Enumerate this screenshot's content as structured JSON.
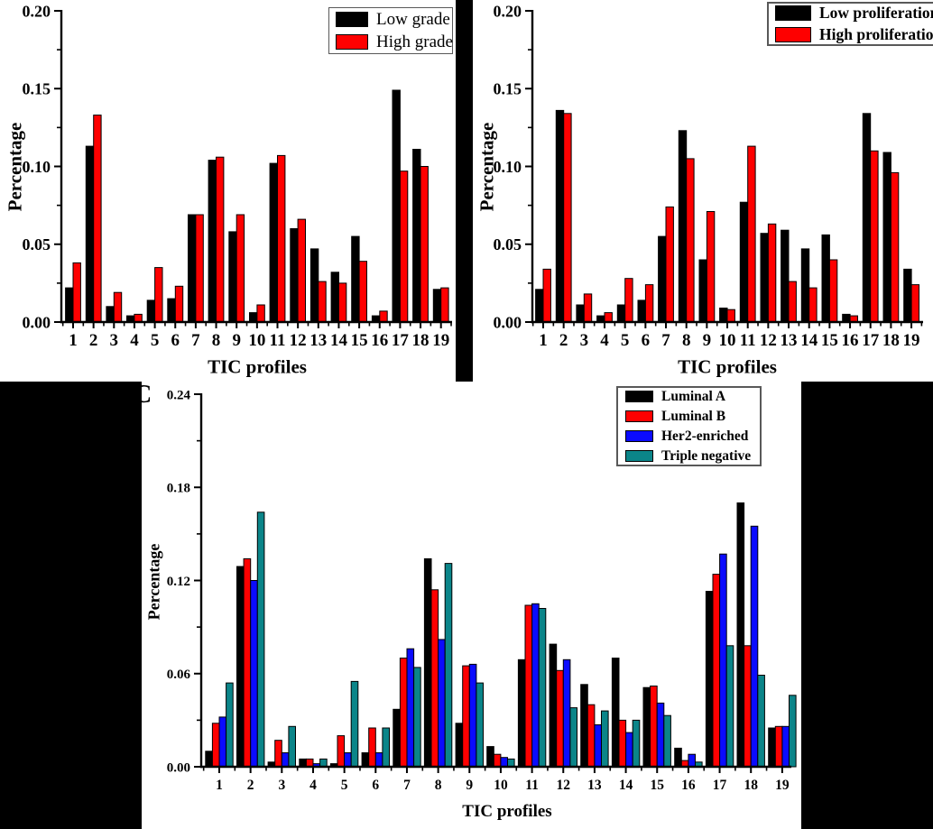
{
  "figure": {
    "background": "#ffffff",
    "mask_color": "#000000",
    "axis_color": "#000000",
    "bar_border_color": "#000000"
  },
  "chart_data": [
    {
      "id": "A",
      "type": "bar",
      "title": "",
      "xlabel": "TIC profiles",
      "ylabel": "Percentage",
      "ylim": [
        0,
        0.2
      ],
      "y_ticks": [
        0,
        0.05,
        0.1,
        0.15,
        0.2
      ],
      "y_tick_labels": [
        "0.00",
        "0.05",
        "0.10",
        "0.15",
        "0.20"
      ],
      "categories": [
        "1",
        "2",
        "3",
        "4",
        "5",
        "6",
        "7",
        "8",
        "9",
        "10",
        "11",
        "12",
        "13",
        "14",
        "15",
        "16",
        "17",
        "18",
        "19"
      ],
      "grid": false,
      "legend_position": "top-right",
      "series": [
        {
          "name": "Low grade",
          "color": "#000000",
          "values": [
            0.022,
            0.113,
            0.01,
            0.004,
            0.014,
            0.015,
            0.069,
            0.104,
            0.058,
            0.006,
            0.102,
            0.06,
            0.047,
            0.032,
            0.055,
            0.004,
            0.149,
            0.111,
            0.021
          ]
        },
        {
          "name": "High grade",
          "color": "#fe0000",
          "values": [
            0.038,
            0.133,
            0.019,
            0.005,
            0.035,
            0.023,
            0.069,
            0.106,
            0.069,
            0.011,
            0.107,
            0.066,
            0.026,
            0.025,
            0.039,
            0.007,
            0.097,
            0.1,
            0.022
          ]
        }
      ]
    },
    {
      "id": "B",
      "type": "bar",
      "title": "",
      "xlabel": "TIC profiles",
      "ylabel": "Percentage",
      "ylim": [
        0,
        0.2
      ],
      "y_ticks": [
        0,
        0.05,
        0.1,
        0.15,
        0.2
      ],
      "y_tick_labels": [
        "0.00",
        "0.05",
        "0.10",
        "0.15",
        "0.20"
      ],
      "categories": [
        "1",
        "2",
        "3",
        "4",
        "5",
        "6",
        "7",
        "8",
        "9",
        "10",
        "11",
        "12",
        "13",
        "14",
        "15",
        "16",
        "17",
        "18",
        "19"
      ],
      "grid": false,
      "legend_position": "top-right",
      "series": [
        {
          "name": "Low proliferation",
          "color": "#000000",
          "values": [
            0.021,
            0.136,
            0.011,
            0.004,
            0.011,
            0.014,
            0.055,
            0.123,
            0.04,
            0.009,
            0.077,
            0.057,
            0.059,
            0.047,
            0.056,
            0.005,
            0.134,
            0.109,
            0.034
          ]
        },
        {
          "name": "High proliferation",
          "color": "#fe0000",
          "values": [
            0.034,
            0.134,
            0.018,
            0.006,
            0.028,
            0.024,
            0.074,
            0.105,
            0.071,
            0.008,
            0.113,
            0.063,
            0.026,
            0.022,
            0.04,
            0.004,
            0.11,
            0.096,
            0.024
          ]
        }
      ]
    },
    {
      "id": "C",
      "panel_label": "C",
      "type": "bar",
      "title": "",
      "xlabel": "TIC profiles",
      "ylabel": "Percentage",
      "ylim": [
        0,
        0.24
      ],
      "y_ticks": [
        0,
        0.06,
        0.12,
        0.18,
        0.24
      ],
      "y_tick_labels": [
        "0.00",
        "0.06",
        "0.12",
        "0.18",
        "0.24"
      ],
      "categories": [
        "1",
        "2",
        "3",
        "4",
        "5",
        "6",
        "7",
        "8",
        "9",
        "10",
        "11",
        "12",
        "13",
        "14",
        "15",
        "16",
        "17",
        "18",
        "19"
      ],
      "grid": false,
      "legend_position": "top-right",
      "series": [
        {
          "name": "Luminal A",
          "color": "#000000",
          "values": [
            0.01,
            0.129,
            0.003,
            0.005,
            0.002,
            0.009,
            0.037,
            0.134,
            0.028,
            0.013,
            0.069,
            0.079,
            0.053,
            0.07,
            0.051,
            0.012,
            0.113,
            0.17,
            0.025
          ]
        },
        {
          "name": "Luminal B",
          "color": "#fe0000",
          "values": [
            0.028,
            0.134,
            0.017,
            0.005,
            0.02,
            0.025,
            0.07,
            0.114,
            0.065,
            0.008,
            0.104,
            0.062,
            0.04,
            0.03,
            0.052,
            0.004,
            0.124,
            0.078,
            0.026
          ]
        },
        {
          "name": "Her2-enriched",
          "color": "#0b0bfe",
          "values": [
            0.032,
            0.12,
            0.009,
            0.002,
            0.009,
            0.009,
            0.076,
            0.082,
            0.066,
            0.006,
            0.105,
            0.069,
            0.027,
            0.022,
            0.041,
            0.008,
            0.137,
            0.155,
            0.026
          ]
        },
        {
          "name": "Triple negative",
          "color": "#0b8589",
          "values": [
            0.054,
            0.164,
            0.026,
            0.005,
            0.055,
            0.025,
            0.064,
            0.131,
            0.054,
            0.005,
            0.102,
            0.038,
            0.036,
            0.03,
            0.033,
            0.003,
            0.078,
            0.059,
            0.046
          ]
        }
      ]
    }
  ]
}
